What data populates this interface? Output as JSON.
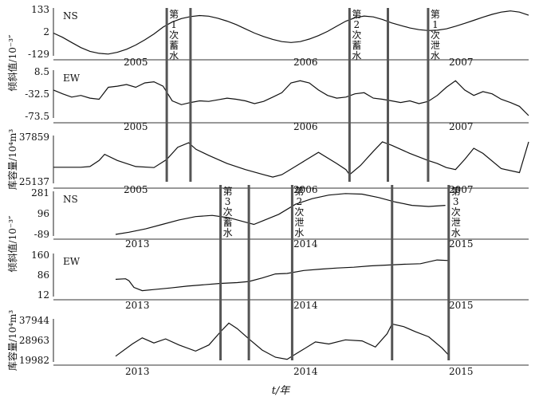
{
  "chart_data": {
    "type": "line",
    "xlabel": "t/年",
    "groups": [
      {
        "period": "2005-2007",
        "years": [
          "2005",
          "2006",
          "2007"
        ],
        "events": [
          {
            "label": "第1次蓄水",
            "x": 2005.62
          },
          {
            "label": "第1次蓄水",
            "x": 2005.75
          },
          {
            "label": "第2次蓄水",
            "x": 2006.62
          },
          {
            "label": "第2次蓄水",
            "x": 2006.83
          },
          {
            "label": "第1次泄水",
            "x": 2007.05
          }
        ],
        "panels": [
          {
            "name": "NS",
            "ylabel": "倾斜值/10⁻³″",
            "ylim": [
              -129,
              133
            ],
            "yticks": [
              "133",
              "2",
              "-129"
            ],
            "x": [
              2005.0,
              2005.05,
              2005.1,
              2005.15,
              2005.2,
              2005.25,
              2005.3,
              2005.35,
              2005.4,
              2005.45,
              2005.5,
              2005.55,
              2005.6,
              2005.65,
              2005.7,
              2005.75,
              2005.8,
              2005.85,
              2005.9,
              2005.95,
              2006.0,
              2006.05,
              2006.1,
              2006.15,
              2006.2,
              2006.25,
              2006.3,
              2006.35,
              2006.4,
              2006.45,
              2006.5,
              2006.55,
              2006.6,
              2006.65,
              2006.7,
              2006.75,
              2006.8,
              2006.85,
              2006.9,
              2006.95,
              2007.0,
              2007.05,
              2007.1,
              2007.15,
              2007.2,
              2007.25,
              2007.3,
              2007.35,
              2007.4,
              2007.45,
              2007.5,
              2007.55,
              2007.6
            ],
            "y": [
              -5,
              -30,
              -60,
              -90,
              -112,
              -124,
              -128,
              -118,
              -100,
              -75,
              -45,
              -10,
              30,
              60,
              80,
              92,
              98,
              94,
              82,
              65,
              45,
              20,
              -5,
              -25,
              -42,
              -55,
              -60,
              -55,
              -40,
              -20,
              5,
              35,
              65,
              85,
              95,
              90,
              75,
              55,
              40,
              25,
              15,
              10,
              12,
              20,
              35,
              52,
              70,
              88,
              105,
              118,
              125,
              118,
              100
            ]
          },
          {
            "name": "EW",
            "ylabel": "",
            "ylim": [
              -73.5,
              8.5
            ],
            "yticks": [
              "8.5",
              "-32.5",
              "-73.5"
            ],
            "x": [
              2005.0,
              2005.05,
              2005.1,
              2005.15,
              2005.2,
              2005.25,
              2005.3,
              2005.35,
              2005.4,
              2005.45,
              2005.5,
              2005.55,
              2005.6,
              2005.65,
              2005.7,
              2005.75,
              2005.8,
              2005.85,
              2005.9,
              2005.95,
              2006.0,
              2006.05,
              2006.1,
              2006.15,
              2006.2,
              2006.25,
              2006.3,
              2006.35,
              2006.4,
              2006.45,
              2006.5,
              2006.55,
              2006.6,
              2006.65,
              2006.7,
              2006.75,
              2006.8,
              2006.85,
              2006.9,
              2006.95,
              2007.0,
              2007.05,
              2007.1,
              2007.15,
              2007.2,
              2007.25,
              2007.3,
              2007.35,
              2007.4,
              2007.45,
              2007.5,
              2007.55,
              2007.6
            ],
            "y": [
              -25,
              -32,
              -38,
              -35,
              -40,
              -42,
              -20,
              -18,
              -15,
              -20,
              -12,
              -10,
              -18,
              -45,
              -52,
              -48,
              -45,
              -46,
              -43,
              -40,
              -42,
              -45,
              -50,
              -46,
              -38,
              -30,
              -12,
              -8,
              -12,
              -25,
              -35,
              -40,
              -38,
              -32,
              -30,
              -40,
              -42,
              -45,
              -48,
              -45,
              -50,
              -46,
              -35,
              -20,
              -8,
              -25,
              -35,
              -28,
              -32,
              -42,
              -48,
              -55,
              -72
            ]
          },
          {
            "name": "",
            "ylabel": "库容量/10⁴m³",
            "ylim": [
              18000,
              40000
            ],
            "yticks": [
              "37859",
              "25137"
            ],
            "x": [
              2005.0,
              2005.1,
              2005.15,
              2005.2,
              2005.25,
              2005.28,
              2005.35,
              2005.45,
              2005.55,
              2005.62,
              2005.68,
              2005.74,
              2005.78,
              2005.85,
              2005.95,
              2006.05,
              2006.15,
              2006.2,
              2006.25,
              2006.35,
              2006.45,
              2006.55,
              2006.6,
              2006.62,
              2006.68,
              2006.75,
              2006.8,
              2006.85,
              2006.95,
              2007.05,
              2007.1,
              2007.15,
              2007.2,
              2007.25,
              2007.3,
              2007.35,
              2007.45,
              2007.55,
              2007.6
            ],
            "y": [
              25137,
              25137,
              25137,
              25500,
              28500,
              31500,
              28500,
              25500,
              25000,
              29000,
              35000,
              37200,
              34000,
              31000,
              27000,
              24000,
              21500,
              20300,
              21500,
              27000,
              32500,
              27000,
              24000,
              21500,
              26000,
              33000,
              37700,
              36000,
              32000,
              28500,
              27000,
              25000,
              24000,
              29000,
              34500,
              32000,
              24500,
              22500,
              37700
            ]
          }
        ]
      },
      {
        "period": "2013-2015",
        "years": [
          "2013",
          "2014",
          "2015"
        ],
        "events": [
          {
            "label": "第3次蓄水",
            "x": 2013.55
          },
          {
            "label": "第2次泄水",
            "x": 2013.72
          },
          {
            "label": "第2次泄水",
            "x": 2013.98
          },
          {
            "label": "第3次泄水",
            "x": 2014.58
          },
          {
            "label": "第3次泄水",
            "x": 2014.92
          }
        ],
        "panels": [
          {
            "name": "NS",
            "ylabel": "倾斜值/10⁻³″",
            "ylim": [
              -89,
              281
            ],
            "yticks": [
              "281",
              "96",
              "-89"
            ],
            "x": [
              2012.92,
              2013.0,
              2013.1,
              2013.2,
              2013.3,
              2013.4,
              2013.5,
              2013.6,
              2013.7,
              2013.75,
              2013.8,
              2013.9,
              2014.0,
              2014.1,
              2014.2,
              2014.3,
              2014.4,
              2014.5,
              2014.6,
              2014.7,
              2014.8,
              2014.9
            ],
            "y": [
              -89,
              -70,
              -40,
              0,
              40,
              70,
              80,
              60,
              20,
              0,
              30,
              90,
              180,
              230,
              262,
              275,
              270,
              240,
              200,
              170,
              160,
              170
            ]
          },
          {
            "name": "EW",
            "ylabel": "",
            "ylim": [
              12,
              160
            ],
            "yticks": [
              "160",
              "86",
              "12"
            ],
            "x": [
              2012.92,
              2012.98,
              2013.0,
              2013.03,
              2013.08,
              2013.15,
              2013.25,
              2013.35,
              2013.45,
              2013.55,
              2013.65,
              2013.72,
              2013.8,
              2013.88,
              2013.95,
              2014.05,
              2014.15,
              2014.25,
              2014.35,
              2014.45,
              2014.55,
              2014.65,
              2014.75,
              2014.85,
              2014.92
            ],
            "y": [
              70,
              72,
              65,
              40,
              28,
              32,
              38,
              45,
              50,
              55,
              58,
              62,
              75,
              90,
              92,
              103,
              108,
              112,
              115,
              120,
              123,
              126,
              128,
              142,
              140
            ]
          },
          {
            "name": "",
            "ylabel": "库容量/10⁴m³",
            "ylim": [
              19982,
              39500
            ],
            "yticks": [
              "37944",
              "28963",
              "19982"
            ],
            "x": [
              2012.92,
              2013.02,
              2013.08,
              2013.15,
              2013.22,
              2013.3,
              2013.4,
              2013.48,
              2013.55,
              2013.6,
              2013.65,
              2013.72,
              2013.8,
              2013.88,
              2013.95,
              2013.98,
              2014.05,
              2014.12,
              2014.2,
              2014.3,
              2014.4,
              2014.48,
              2014.55,
              2014.58,
              2014.65,
              2014.72,
              2014.8,
              2014.88,
              2014.92
            ],
            "y": [
              22000,
              28000,
              31000,
              28500,
              30500,
              27500,
              24500,
              27500,
              34000,
              38200,
              35500,
              30500,
              25000,
              21500,
              20500,
              22000,
              25500,
              29000,
              28000,
              30000,
              29500,
              26500,
              33000,
              37800,
              36500,
              34000,
              31500,
              26000,
              22500
            ]
          }
        ]
      }
    ]
  }
}
